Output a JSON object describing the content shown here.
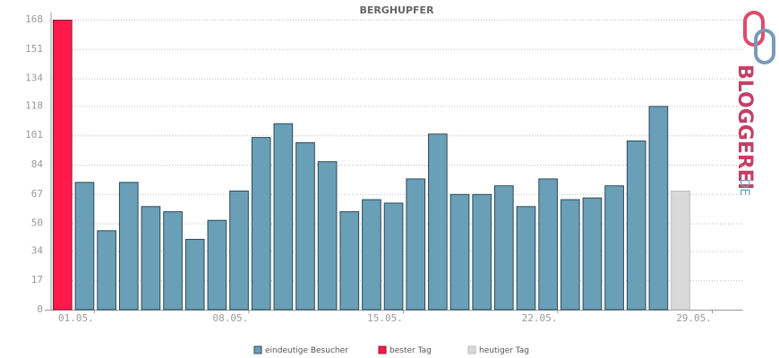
{
  "chart_data": {
    "type": "bar",
    "title": "BERGHUPFER",
    "categories": [
      "01.05.",
      null,
      null,
      null,
      null,
      null,
      null,
      "08.05.",
      null,
      null,
      null,
      null,
      null,
      null,
      "15.05.",
      null,
      null,
      null,
      null,
      null,
      null,
      "22.05.",
      null,
      null,
      null,
      null,
      null,
      null,
      "29.05.",
      null,
      null
    ],
    "series": [
      {
        "name": "eindeutige Besucher",
        "color": "#6a9fb8",
        "values": [
          null,
          74,
          46,
          74,
          60,
          57,
          41,
          52,
          69,
          100,
          108,
          97,
          86,
          57,
          64,
          62,
          76,
          102,
          67,
          67,
          72,
          60,
          76,
          64,
          65,
          72,
          98,
          118,
          null,
          null,
          null
        ]
      },
      {
        "name": "bester Tag",
        "color": "#ff1a4b",
        "values": [
          168,
          null,
          null,
          null,
          null,
          null,
          null,
          null,
          null,
          null,
          null,
          null,
          null,
          null,
          null,
          null,
          null,
          null,
          null,
          null,
          null,
          null,
          null,
          null,
          null,
          null,
          null,
          null,
          null,
          null,
          null
        ]
      },
      {
        "name": "heutiger Tag",
        "color": "#d9d9d9",
        "values": [
          null,
          null,
          null,
          null,
          null,
          null,
          null,
          null,
          null,
          null,
          null,
          null,
          null,
          null,
          null,
          null,
          null,
          null,
          null,
          null,
          null,
          null,
          null,
          null,
          null,
          null,
          null,
          null,
          69,
          null,
          null
        ]
      }
    ],
    "ylim": [
      0,
      168
    ],
    "yticks": [
      0,
      17,
      34,
      50,
      67,
      84,
      101,
      118,
      134,
      151,
      168
    ],
    "grid": true,
    "watermark": {
      "text": "BLOGGEREI",
      "suffix": ".DE"
    }
  }
}
